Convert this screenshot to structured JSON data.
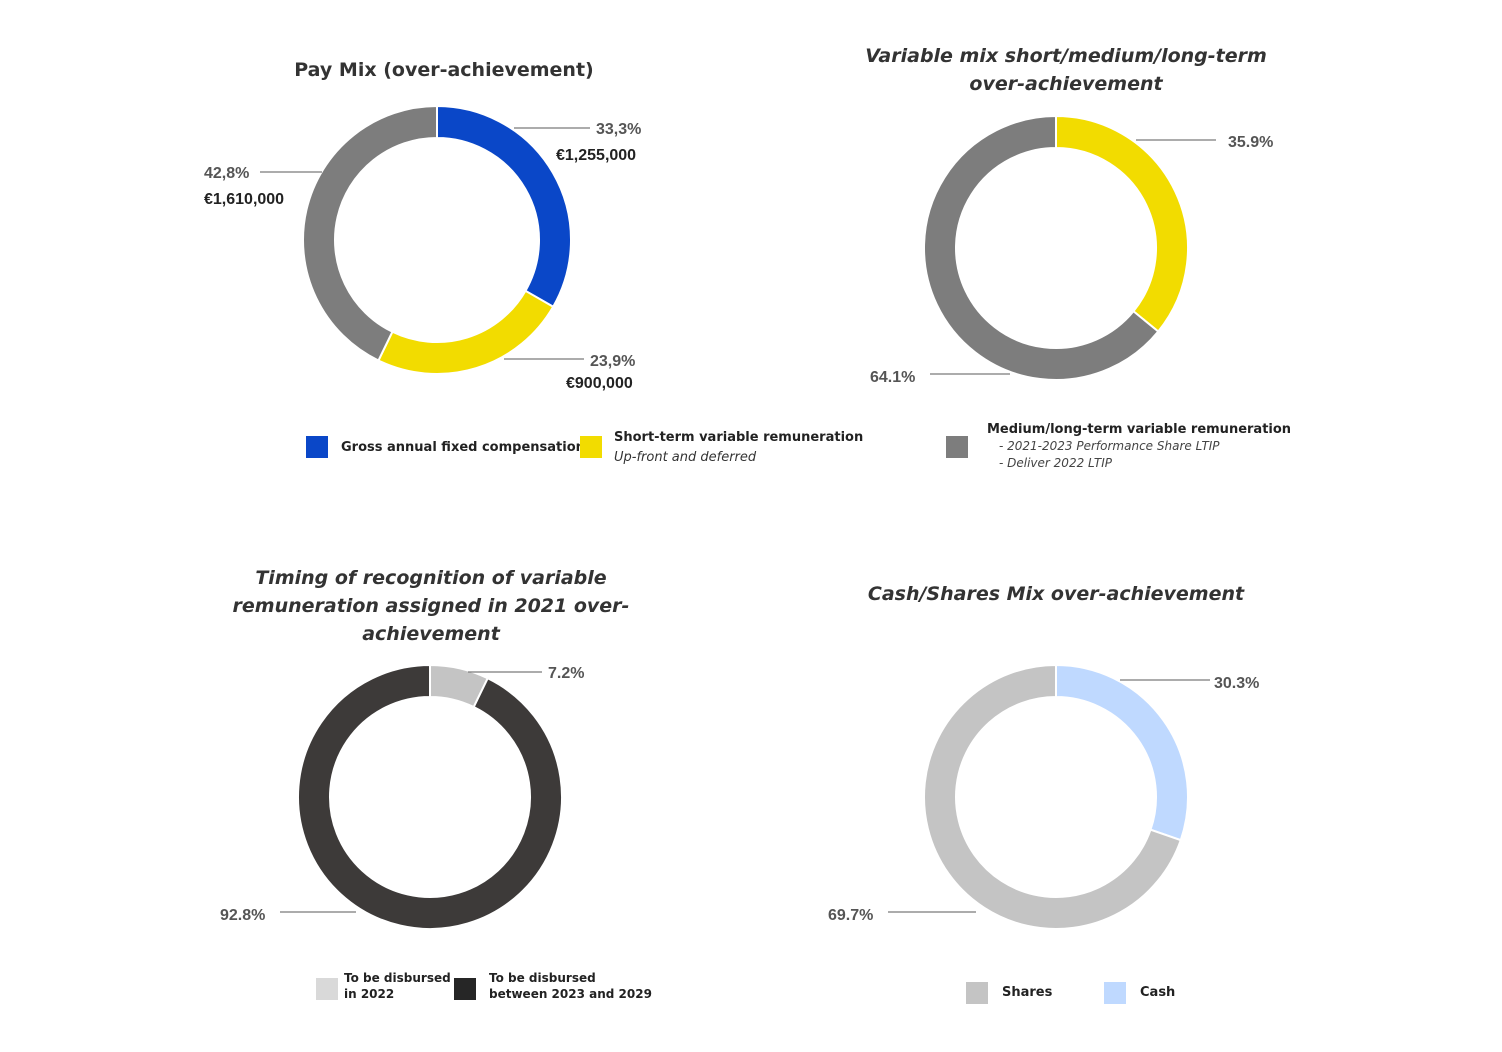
{
  "chart_data": [
    {
      "type": "pie",
      "title": "Pay Mix (over-achievement)",
      "slices": [
        {
          "label": "Gross annual fixed compensation",
          "value": 33.3,
          "pct_label": "33,3%",
          "amount_label": "€1,255,000",
          "color": "#0a47c8"
        },
        {
          "label": "Short-term variable remuneration",
          "value": 23.9,
          "pct_label": "23,9%",
          "amount_label": "€900,000",
          "color": "#f2dc00"
        },
        {
          "label": "Medium/long-term variable remuneration",
          "value": 42.8,
          "pct_label": "42,8%",
          "amount_label": "€1,610,000",
          "color": "#7d7d7d"
        }
      ]
    },
    {
      "type": "pie",
      "title": "Variable mix short/medium/long-term over-achievement",
      "slices": [
        {
          "label": "Short-term variable remuneration",
          "value": 35.9,
          "pct_label": "35.9%",
          "color": "#f2dc00"
        },
        {
          "label": "Medium/long-term variable remuneration",
          "value": 64.1,
          "pct_label": "64.1%",
          "color": "#7d7d7d"
        }
      ]
    },
    {
      "type": "pie",
      "title": "Timing of recognition of variable remuneration assigned in 2021 over-achievement",
      "slices": [
        {
          "label": "To be disbursed in 2022",
          "value": 7.2,
          "pct_label": "7.2%",
          "color": "#c4c4c4"
        },
        {
          "label": "To be disbursed between 2023 and 2029",
          "value": 92.8,
          "pct_label": "92.8%",
          "color": "#3d3a39"
        }
      ]
    },
    {
      "type": "pie",
      "title": "Cash/Shares Mix over-achievement",
      "slices": [
        {
          "label": "Cash",
          "value": 30.3,
          "pct_label": "30.3%",
          "color": "#bfd9ff"
        },
        {
          "label": "Shares",
          "value": 69.7,
          "pct_label": "69.7%",
          "color": "#c4c4c4"
        }
      ]
    }
  ],
  "legends": {
    "paymix": {
      "fixed": {
        "label": "Gross annual fixed compensation",
        "color": "#0a47c8"
      },
      "short": {
        "label": "Short-term variable remuneration",
        "sub": "Up-front and deferred",
        "color": "#f2dc00"
      }
    },
    "varmix": {
      "medium": {
        "label": "Medium/long-term variable remuneration",
        "color": "#7d7d7d",
        "bullets": [
          "- 2021-2023 Performance Share LTIP",
          "- Deliver 2022 LTIP"
        ]
      }
    },
    "timing": {
      "y2022": {
        "line1": "To be disbursed",
        "line2": "in 2022",
        "color": "#d9d9d9"
      },
      "y2023": {
        "line1": "To be disbursed",
        "line2": "between 2023 and 2029",
        "color": "#262626"
      }
    },
    "cash": {
      "shares": {
        "label": "Shares",
        "color": "#c4c4c4"
      },
      "cash": {
        "label": "Cash",
        "color": "#bfd9ff"
      }
    }
  }
}
